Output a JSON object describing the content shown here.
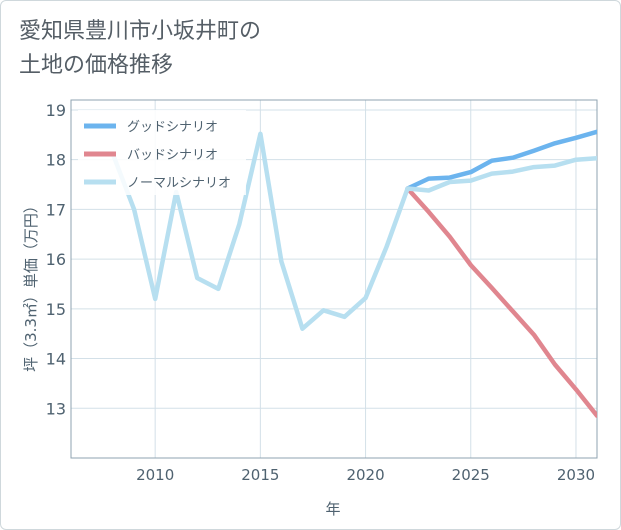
{
  "title_lines": [
    "愛知県豊川市小坂井町の",
    "土地の価格推移"
  ],
  "chart_data": {
    "type": "line",
    "xlabel": "年",
    "ylabel": "坪（3.3㎡）単価（万円）",
    "xlim": [
      2006,
      2031
    ],
    "ylim": [
      12,
      19.2
    ],
    "xticks": [
      2010,
      2015,
      2020,
      2025,
      2030
    ],
    "yticks": [
      13,
      14,
      15,
      16,
      17,
      18,
      19
    ],
    "grid": true,
    "legend_position": "top-left",
    "series": [
      {
        "name": "グッドシナリオ",
        "color": "#6cb4ee",
        "x": [
          2022,
          2023,
          2024,
          2025,
          2026,
          2027,
          2028,
          2029,
          2030,
          2031
        ],
        "y": [
          17.42,
          17.62,
          17.64,
          17.75,
          17.98,
          18.04,
          18.18,
          18.33,
          18.44,
          18.56
        ]
      },
      {
        "name": "バッドシナリオ",
        "color": "#e0868f",
        "x": [
          2022,
          2023,
          2024,
          2025,
          2026,
          2027,
          2028,
          2029,
          2030,
          2031
        ],
        "y": [
          17.42,
          16.95,
          16.45,
          15.88,
          15.42,
          14.95,
          14.48,
          13.88,
          13.38,
          12.85
        ]
      },
      {
        "name": "ノーマルシナリオ",
        "color": "#b7dff0",
        "x": [
          2008,
          2009,
          2010,
          2011,
          2012,
          2013,
          2014,
          2015,
          2016,
          2017,
          2018,
          2019,
          2020,
          2021,
          2022,
          2023,
          2024,
          2025,
          2026,
          2027,
          2028,
          2029,
          2030,
          2031
        ],
        "y": [
          18.1,
          17.0,
          15.2,
          17.35,
          15.62,
          15.4,
          16.7,
          18.52,
          15.95,
          14.6,
          14.97,
          14.84,
          15.22,
          16.25,
          17.42,
          17.38,
          17.55,
          17.58,
          17.72,
          17.76,
          17.85,
          17.88,
          18.0,
          18.03
        ]
      }
    ]
  }
}
